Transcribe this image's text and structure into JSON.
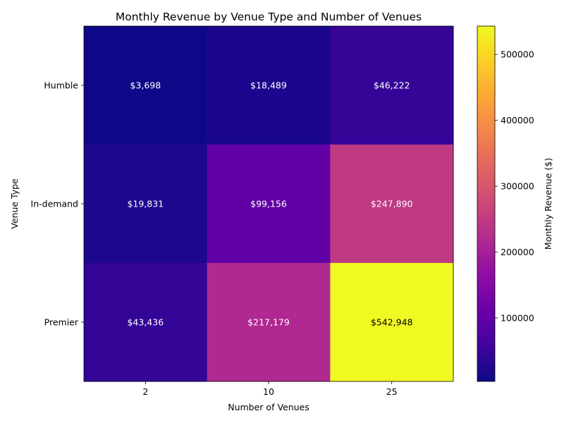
{
  "chart_data": {
    "type": "heatmap",
    "title": "Monthly Revenue by Venue Type and Number of Venues",
    "xlabel": "Number of Venues",
    "ylabel": "Venue Type",
    "x_categories": [
      "2",
      "10",
      "25"
    ],
    "y_categories": [
      "Humble",
      "In-demand",
      "Premier"
    ],
    "values": [
      [
        3698,
        18489,
        46222
      ],
      [
        19831,
        99156,
        247890
      ],
      [
        43436,
        217179,
        542948
      ]
    ],
    "cell_labels": [
      [
        "$3,698",
        "$18,489",
        "$46,222"
      ],
      [
        "$19,831",
        "$99,156",
        "$247,890"
      ],
      [
        "$43,436",
        "$217,179",
        "$542,948"
      ]
    ],
    "colormap": "plasma",
    "colorbar": {
      "label": "Monthly Revenue ($)",
      "min": 3698,
      "max": 542948,
      "ticks": [
        "100000",
        "200000",
        "300000",
        "400000",
        "500000"
      ],
      "tick_values": [
        100000,
        200000,
        300000,
        400000,
        500000
      ]
    },
    "grid": false
  }
}
